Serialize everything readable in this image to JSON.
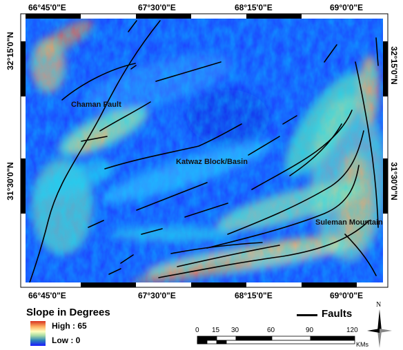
{
  "map": {
    "top_coords": [
      "66°45'0\"E",
      "67°30'0\"E",
      "68°15'0\"E",
      "69°0'0\"E"
    ],
    "bottom_coords": [
      "66°45'0\"E",
      "67°30'0\"E",
      "68°15'0\"E",
      "69°0'0\"E"
    ],
    "left_coords": [
      "32°15'0\"N",
      "31°30'0\"N"
    ],
    "right_coords": [
      "32°15'0\"N",
      "31°30'0\"N"
    ],
    "labels": {
      "chaman": "Chaman Fault",
      "katwaz": "Katwaz Block/Basin",
      "suleman": "Suleman Mountain"
    }
  },
  "legend": {
    "title": "Slope in Degrees",
    "high": "High : 65",
    "low": "Low : 0",
    "faults": "Faults",
    "colors": {
      "high": "#d7301f",
      "mid": "#ffffbf",
      "low": "#1a1aff"
    }
  },
  "scale_bar": {
    "ticks": [
      "0",
      "15",
      "30",
      "60",
      "90",
      "120"
    ],
    "unit": "KMs"
  },
  "north_arrow": {
    "letter": "N"
  }
}
